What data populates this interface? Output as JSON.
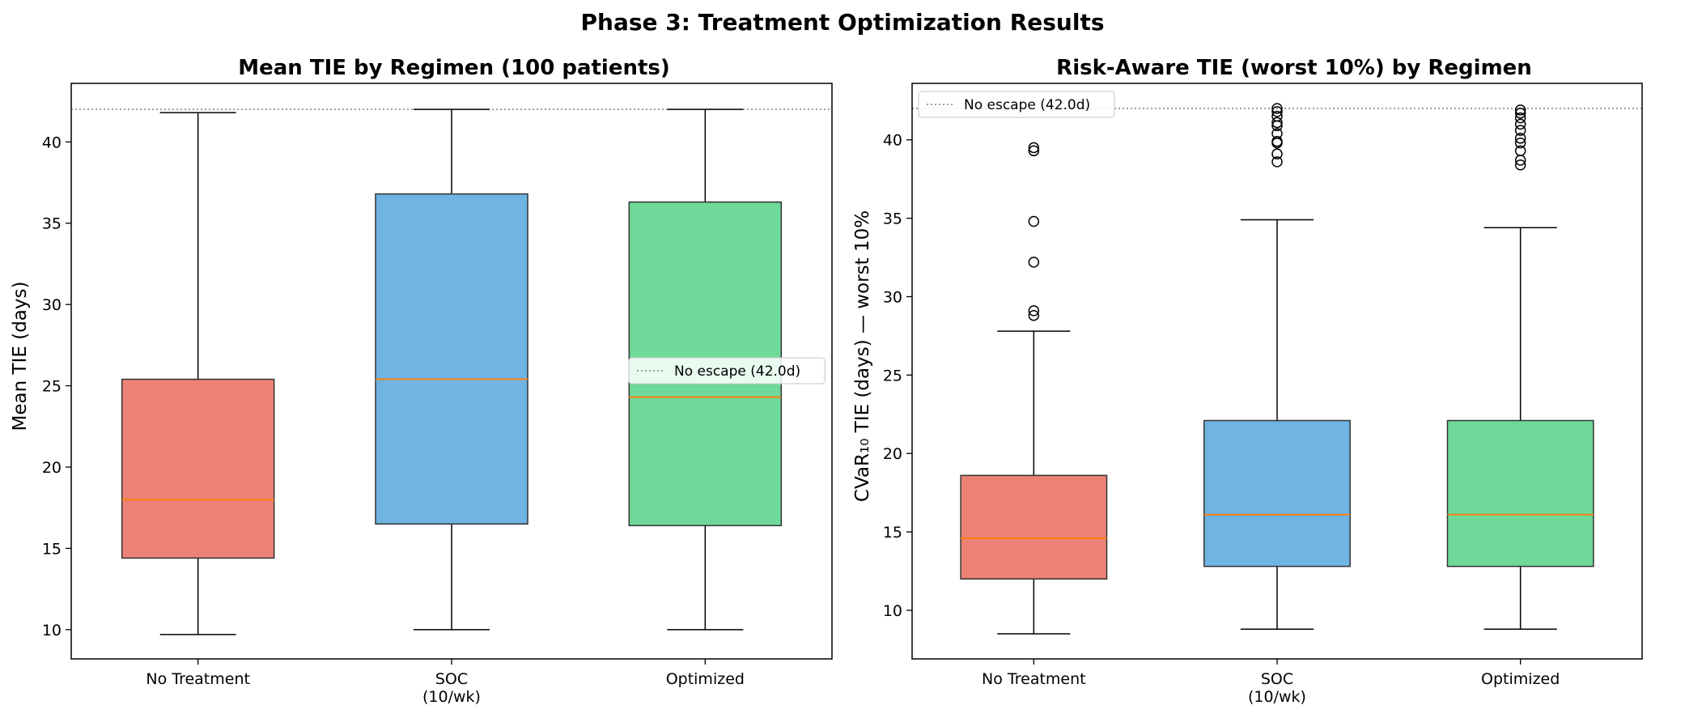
{
  "figure_title": "Phase 3: Treatment Optimization Results",
  "colors": {
    "no_treatment": "#ec8276",
    "soc": "#6fb4e2",
    "optimized": "#6ed998",
    "median": "#ff7f0e",
    "reference_line": "#808080"
  },
  "chart_data": [
    {
      "type": "box",
      "title": "Mean TIE by Regimen (100 patients)",
      "xlabel": "",
      "ylabel": "Mean TIE (days)",
      "ylim": [
        8.2,
        43.6
      ],
      "yticks": [
        10,
        15,
        20,
        25,
        30,
        35,
        40
      ],
      "grid": false,
      "legend": {
        "placement": "center-right",
        "entries": [
          "No escape (42.0d)"
        ]
      },
      "reference_line": {
        "y": 42.0,
        "label": "No escape (42.0d)",
        "style": "dotted"
      },
      "categories": [
        "No Treatment",
        "SOC\n(10/wk)",
        "Optimized"
      ],
      "boxes": [
        {
          "category": "No Treatment",
          "whisker_low": 9.7,
          "q1": 14.4,
          "median": 18.0,
          "q3": 25.4,
          "whisker_high": 41.8,
          "outliers": []
        },
        {
          "category": "SOC (10/wk)",
          "whisker_low": 10.0,
          "q1": 16.5,
          "median": 25.4,
          "q3": 36.8,
          "whisker_high": 42.0,
          "outliers": []
        },
        {
          "category": "Optimized",
          "whisker_low": 10.0,
          "q1": 16.4,
          "median": 24.3,
          "q3": 36.3,
          "whisker_high": 42.0,
          "outliers": []
        }
      ]
    },
    {
      "type": "box",
      "title": "Risk-Aware TIE (worst 10%) by Regimen",
      "xlabel": "",
      "ylabel": "CVaR₁₀ TIE (days) — worst 10%",
      "ylim": [
        6.9,
        43.6
      ],
      "yticks": [
        10,
        15,
        20,
        25,
        30,
        35,
        40
      ],
      "grid": false,
      "legend": {
        "placement": "top-left",
        "entries": [
          "No escape (42.0d)"
        ]
      },
      "reference_line": {
        "y": 42.0,
        "label": "No escape (42.0d)",
        "style": "dotted"
      },
      "categories": [
        "No Treatment",
        "SOC\n(10/wk)",
        "Optimized"
      ],
      "boxes": [
        {
          "category": "No Treatment",
          "whisker_low": 8.5,
          "q1": 12.0,
          "median": 14.6,
          "q3": 18.6,
          "whisker_high": 27.8,
          "outliers": [
            28.8,
            29.1,
            32.2,
            34.8,
            39.3,
            39.5
          ]
        },
        {
          "category": "SOC (10/wk)",
          "whisker_low": 8.8,
          "q1": 12.8,
          "median": 16.1,
          "q3": 22.1,
          "whisker_high": 34.9,
          "outliers": [
            38.6,
            39.1,
            39.8,
            39.9,
            40.4,
            40.9,
            41.1,
            41.5,
            41.8,
            42.0
          ]
        },
        {
          "category": "Optimized",
          "whisker_low": 8.8,
          "q1": 12.8,
          "median": 16.1,
          "q3": 22.1,
          "whisker_high": 34.4,
          "outliers": [
            38.4,
            38.7,
            39.3,
            39.8,
            40.1,
            40.6,
            41.0,
            41.4,
            41.7,
            41.9
          ]
        }
      ]
    }
  ]
}
